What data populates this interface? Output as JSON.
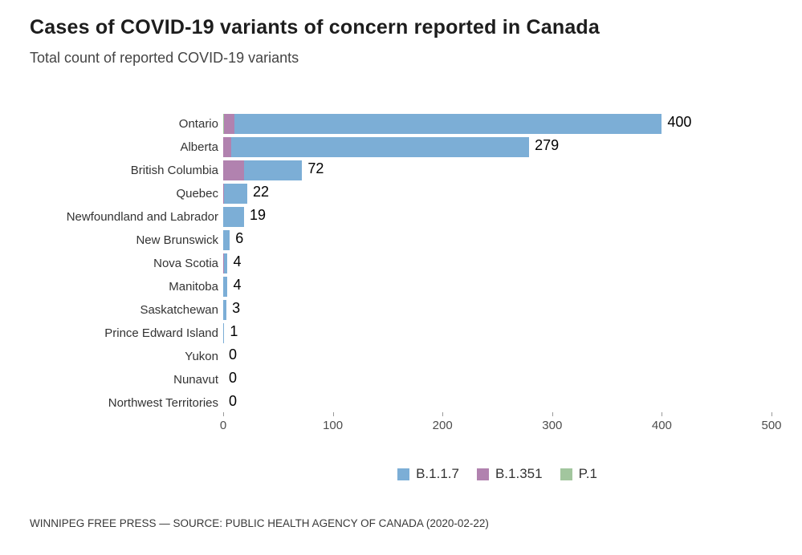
{
  "title": "Cases of COVID-19 variants of concern reported in Canada",
  "subtitle": "Total count of reported COVID-19 variants",
  "footer": "WINNIPEG FREE PRESS — SOURCE: PUBLIC HEALTH AGENCY OF CANADA (2020-02-22)",
  "colors": {
    "b117": "#7caed6",
    "b1351": "#b182af",
    "p1": "#a2c69e",
    "tick": "#999999"
  },
  "chart_data": {
    "type": "bar",
    "orientation": "horizontal",
    "stacked": true,
    "title": "Cases of COVID-19 variants of concern reported in Canada",
    "subtitle": "Total count of reported COVID-19 variants",
    "categories": [
      "Ontario",
      "Alberta",
      "British Columbia",
      "Quebec",
      "Newfoundland and Labrador",
      "New Brunswick",
      "Nova Scotia",
      "Manitoba",
      "Saskatchewan",
      "Prince Edward Island",
      "Yukon",
      "Nunavut",
      "Northwest Territories"
    ],
    "series": [
      {
        "name": "B.1.1.7",
        "color": "#7caed6",
        "values": [
          390,
          272,
          53,
          21,
          19,
          6,
          3,
          4,
          3,
          1,
          0,
          0,
          0
        ]
      },
      {
        "name": "B.1.351",
        "color": "#b182af",
        "values": [
          9,
          7,
          19,
          1,
          0,
          0,
          1,
          0,
          0,
          0,
          0,
          0,
          0
        ]
      },
      {
        "name": "P.1",
        "color": "#a2c69e",
        "values": [
          1,
          0,
          0,
          0,
          0,
          0,
          0,
          0,
          0,
          0,
          0,
          0,
          0
        ]
      }
    ],
    "totals": [
      400,
      279,
      72,
      22,
      19,
      6,
      4,
      4,
      3,
      1,
      0,
      0,
      0
    ],
    "total_labels": [
      "400",
      "279",
      "72",
      "22",
      "19",
      "6",
      "4",
      "4",
      "3",
      "1",
      "0",
      "0",
      "0"
    ],
    "segment_draw_order": [
      "P.1",
      "B.1.351",
      "B.1.1.7"
    ],
    "xlabel": "",
    "ylabel": "",
    "xlim": [
      0,
      500
    ],
    "x_ticks": [
      0,
      100,
      200,
      300,
      400,
      500
    ],
    "x_tick_labels": [
      "0",
      "100",
      "200",
      "300",
      "400",
      "500"
    ],
    "grid": false,
    "legend_position": "bottom-center"
  },
  "legend": {
    "items": [
      {
        "label": "B.1.1.7",
        "color": "#7caed6"
      },
      {
        "label": "B.1.351",
        "color": "#b182af"
      },
      {
        "label": "P.1",
        "color": "#a2c69e"
      }
    ]
  }
}
